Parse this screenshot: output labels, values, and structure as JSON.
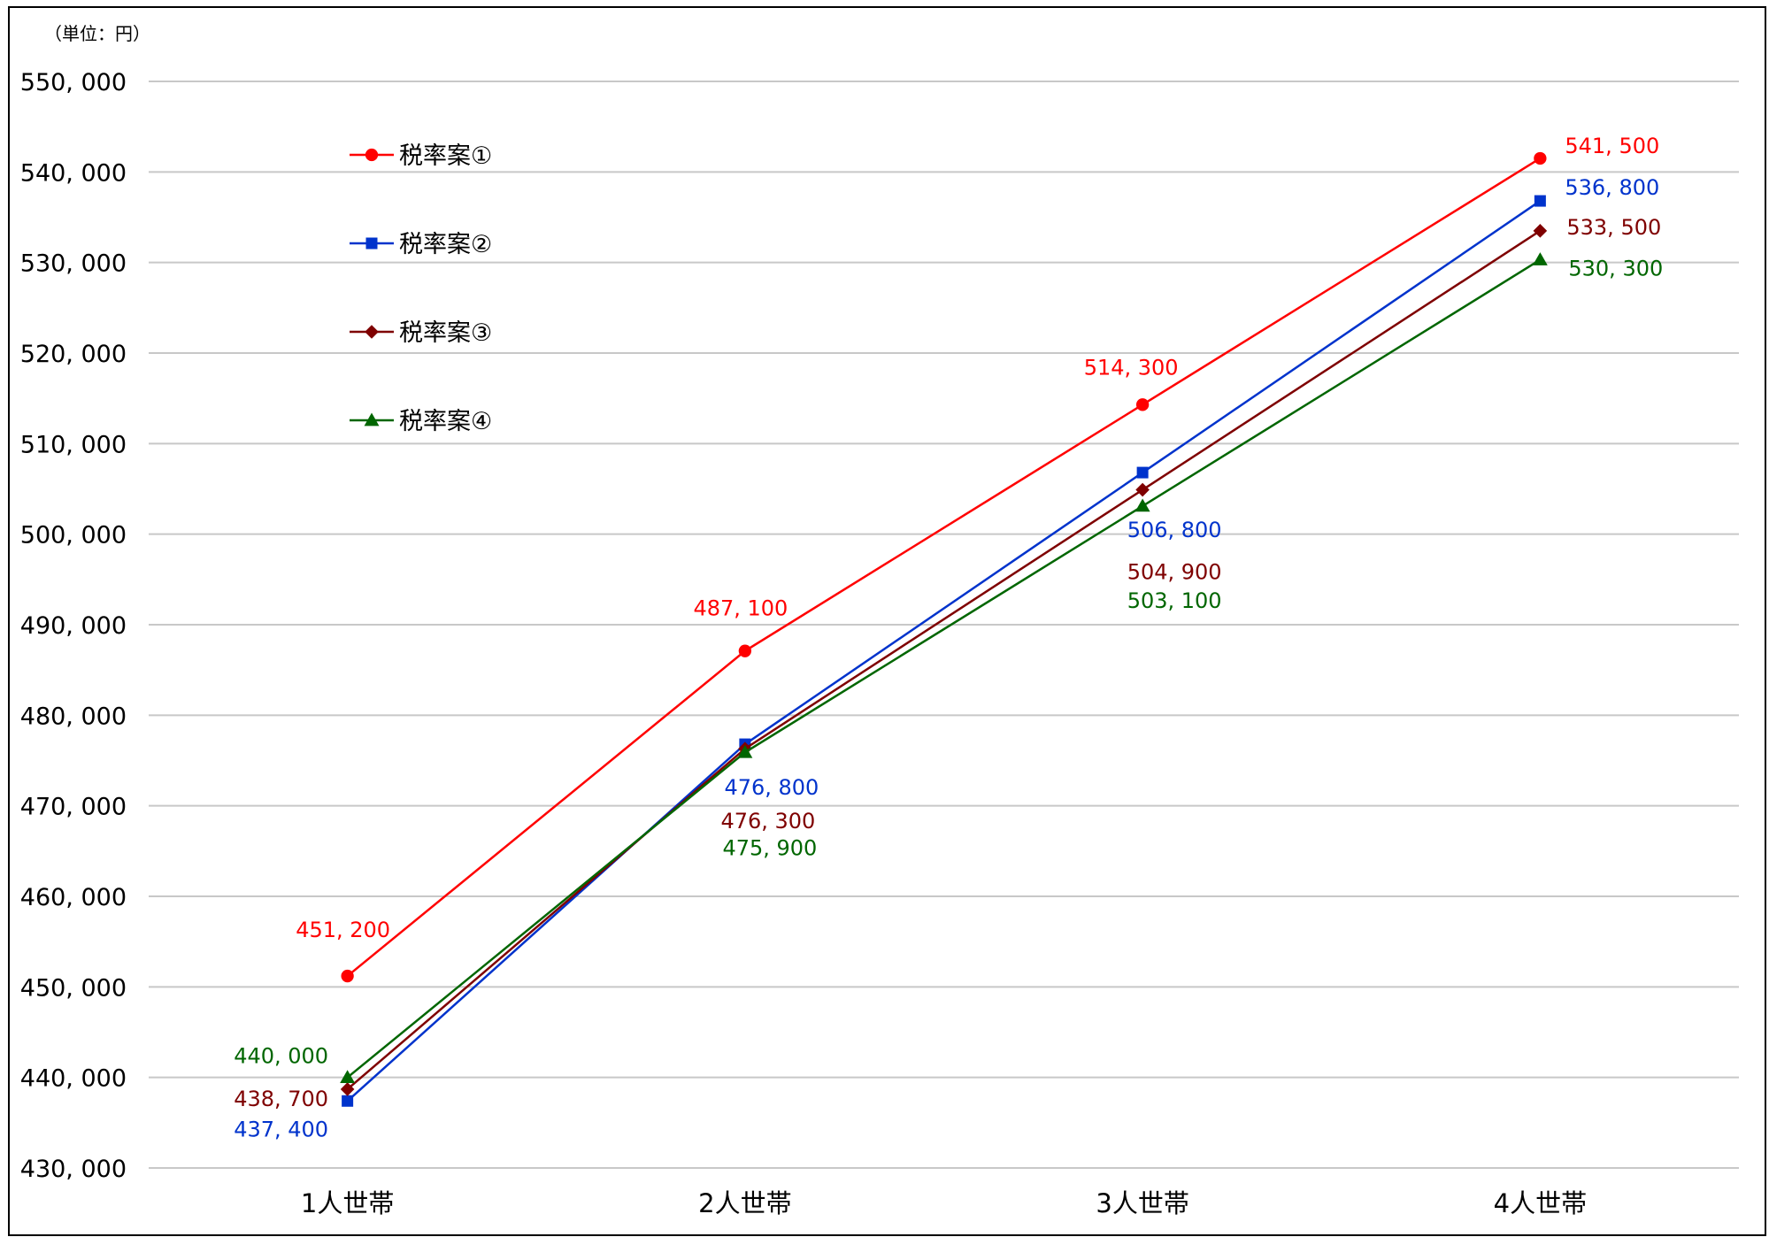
{
  "chart_data": {
    "type": "line",
    "unit_label": "（単位：円）",
    "categories": [
      "1人世帯",
      "2人世帯",
      "3人世帯",
      "4人世帯"
    ],
    "ylim": [
      430000,
      550000
    ],
    "yticks": [
      430000,
      440000,
      450000,
      460000,
      470000,
      480000,
      490000,
      500000,
      510000,
      520000,
      530000,
      540000,
      550000
    ],
    "ytick_labels": [
      "430, 000",
      "440, 000",
      "450, 000",
      "460, 000",
      "470, 000",
      "480, 000",
      "490, 000",
      "500, 000",
      "510, 000",
      "520, 000",
      "530, 000",
      "540, 000",
      "550, 000"
    ],
    "grid": true,
    "legend_position": "top-left",
    "series": [
      {
        "name": "税率案①",
        "color": "#ff0000",
        "marker": "circle",
        "values": [
          451200,
          487100,
          514300,
          541500
        ],
        "labels": [
          "451, 200",
          "487, 100",
          "514, 300",
          "541, 500"
        ]
      },
      {
        "name": "税率案②",
        "color": "#0033cc",
        "marker": "square",
        "values": [
          437400,
          476800,
          506800,
          536800
        ],
        "labels": [
          "437, 400",
          "476, 800",
          "506, 800",
          "536, 800"
        ]
      },
      {
        "name": "税率案③",
        "color": "#7f0000",
        "marker": "diamond",
        "values": [
          438700,
          476300,
          504900,
          533500
        ],
        "labels": [
          "438, 700",
          "476, 300",
          "504, 900",
          "533, 500"
        ]
      },
      {
        "name": "税率案④",
        "color": "#006600",
        "marker": "triangle",
        "values": [
          440000,
          475900,
          503100,
          530300
        ],
        "labels": [
          "440, 000",
          "475, 900",
          "503, 100",
          "530, 300"
        ]
      }
    ]
  }
}
